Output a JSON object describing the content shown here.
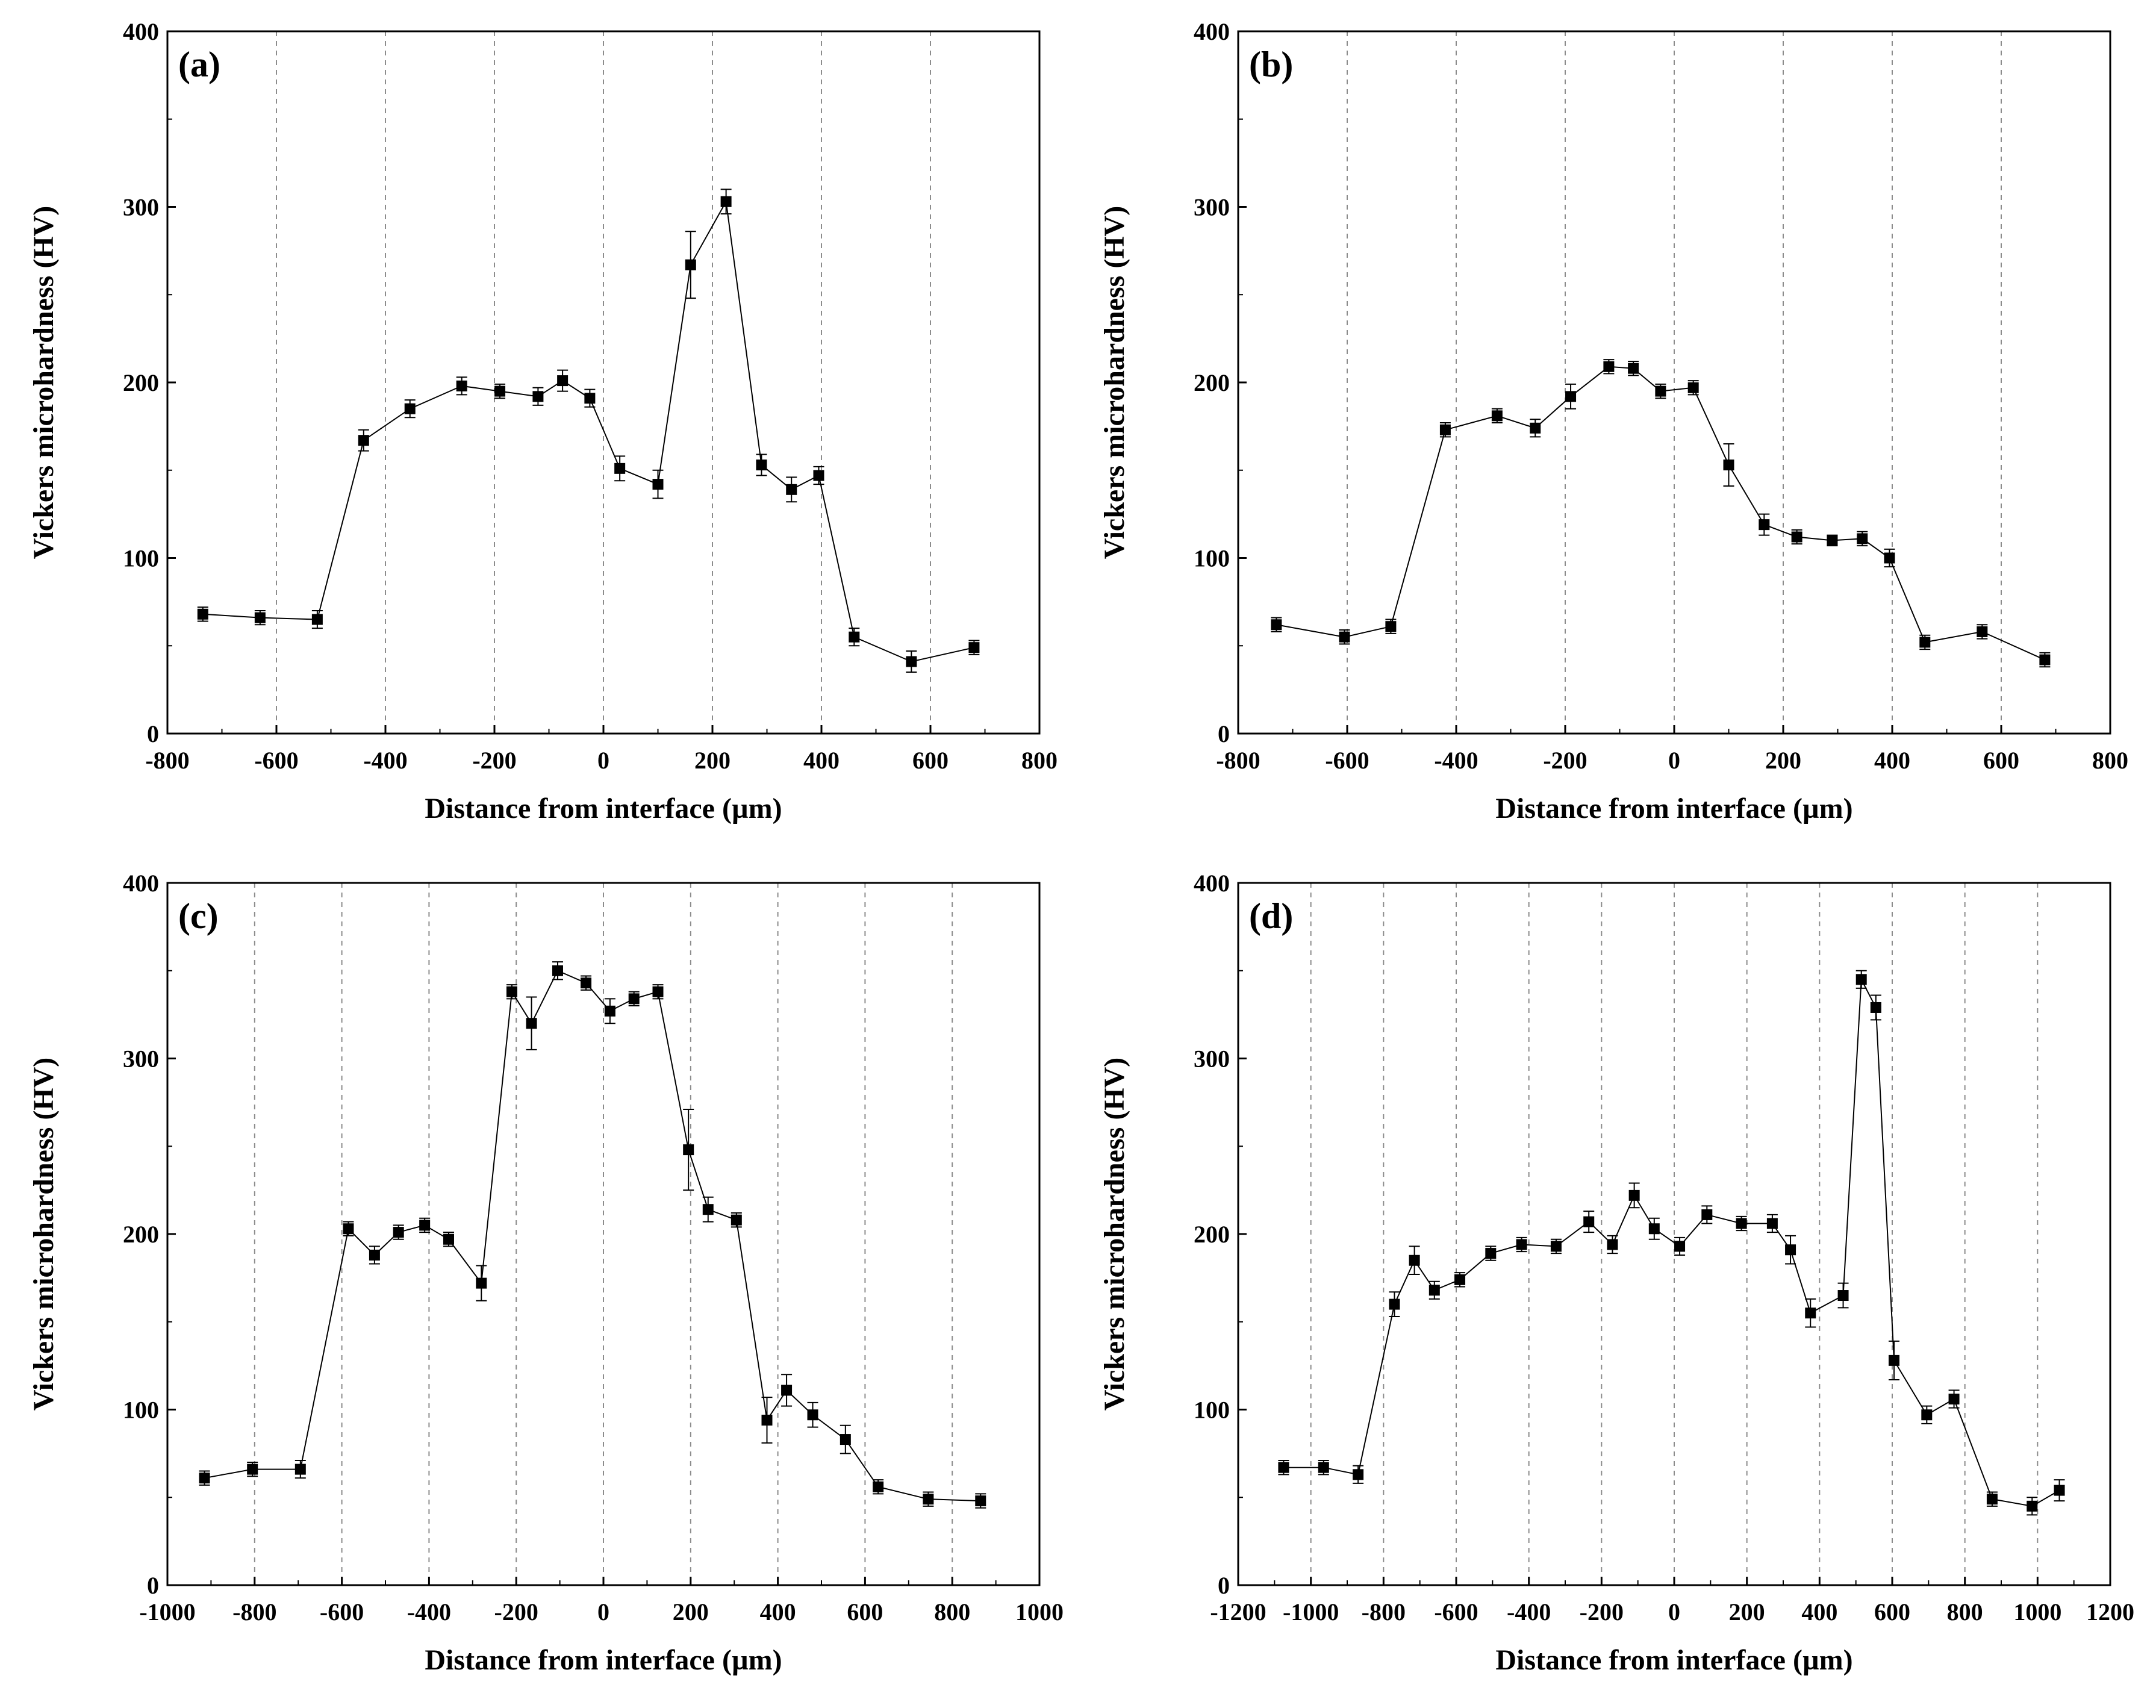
{
  "chart_data": [
    {
      "type": "line",
      "panel_label": "(a)",
      "xlabel": "Distance from interface (µm)",
      "ylabel": "Vickers microhardness (HV)",
      "xlim": [
        -800,
        800
      ],
      "ylim": [
        0,
        400
      ],
      "xticks": [
        -800,
        -600,
        -400,
        -200,
        0,
        200,
        400,
        600,
        800
      ],
      "yticks": [
        0,
        100,
        200,
        300,
        400
      ],
      "gridlines_x": [
        -600,
        -400,
        -200,
        0,
        200,
        400,
        600
      ],
      "series": [
        {
          "name": "(a)",
          "x": [
            -735,
            -630,
            -525,
            -440,
            -355,
            -260,
            -190,
            -120,
            -75,
            -25,
            30,
            100,
            160,
            225,
            290,
            345,
            395,
            460,
            565,
            680
          ],
          "y": [
            68,
            66,
            65,
            167,
            185,
            198,
            195,
            192,
            201,
            191,
            151,
            142,
            267,
            303,
            153,
            139,
            147,
            55,
            41,
            49
          ],
          "err": [
            4,
            4,
            5,
            6,
            5,
            5,
            4,
            5,
            6,
            5,
            7,
            8,
            19,
            7,
            6,
            7,
            5,
            5,
            6,
            4
          ]
        }
      ]
    },
    {
      "type": "line",
      "panel_label": "(b)",
      "xlabel": "Distance from interface (µm)",
      "ylabel": "Vickers microhardness (HV)",
      "xlim": [
        -800,
        800
      ],
      "ylim": [
        0,
        400
      ],
      "xticks": [
        -800,
        -600,
        -400,
        -200,
        0,
        200,
        400,
        600,
        800
      ],
      "yticks": [
        0,
        100,
        200,
        300,
        400
      ],
      "gridlines_x": [
        -600,
        -400,
        -200,
        0,
        200,
        400,
        600
      ],
      "series": [
        {
          "name": "(b)",
          "x": [
            -730,
            -605,
            -520,
            -420,
            -325,
            -255,
            -190,
            -120,
            -75,
            -25,
            35,
            100,
            165,
            225,
            290,
            345,
            395,
            460,
            565,
            680
          ],
          "y": [
            62,
            55,
            61,
            173,
            181,
            174,
            192,
            209,
            208,
            195,
            197,
            153,
            119,
            112,
            110,
            111,
            100,
            52,
            58,
            42
          ],
          "err": [
            4,
            4,
            4,
            4,
            4,
            5,
            7,
            4,
            4,
            4,
            4,
            12,
            6,
            4,
            3,
            4,
            5,
            4,
            4,
            4
          ]
        }
      ]
    },
    {
      "type": "line",
      "panel_label": "(c)",
      "xlabel": "Distance from interface (µm)",
      "ylabel": "Vickers microhardness (HV)",
      "xlim": [
        -1000,
        1000
      ],
      "ylim": [
        0,
        400
      ],
      "xticks": [
        -1000,
        -800,
        -600,
        -400,
        -200,
        0,
        200,
        400,
        600,
        800,
        1000
      ],
      "yticks": [
        0,
        100,
        200,
        300,
        400
      ],
      "gridlines_x": [
        -800,
        -600,
        -400,
        -200,
        0,
        200,
        400,
        600,
        800
      ],
      "series": [
        {
          "name": "(c)",
          "x": [
            -915,
            -805,
            -695,
            -585,
            -525,
            -470,
            -410,
            -355,
            -280,
            -210,
            -165,
            -105,
            -40,
            15,
            70,
            125,
            195,
            240,
            305,
            375,
            420,
            480,
            555,
            630,
            745,
            865
          ],
          "y": [
            61,
            66,
            66,
            203,
            188,
            201,
            205,
            197,
            172,
            338,
            320,
            350,
            343,
            327,
            334,
            338,
            248,
            214,
            208,
            94,
            111,
            97,
            83,
            56,
            49,
            48
          ],
          "err": [
            4,
            4,
            5,
            4,
            5,
            4,
            4,
            4,
            10,
            4,
            15,
            5,
            4,
            7,
            4,
            4,
            23,
            7,
            4,
            13,
            9,
            7,
            8,
            4,
            4,
            4
          ]
        }
      ]
    },
    {
      "type": "line",
      "panel_label": "(d)",
      "xlabel": "Distance from interface (µm)",
      "ylabel": "Vickers microhardness (HV)",
      "xlim": [
        -1200,
        1200
      ],
      "ylim": [
        0,
        400
      ],
      "xticks": [
        -1200,
        -1000,
        -800,
        -600,
        -400,
        -200,
        0,
        200,
        400,
        600,
        800,
        1000,
        1200
      ],
      "yticks": [
        0,
        100,
        200,
        300,
        400
      ],
      "gridlines_x": [
        -1000,
        -800,
        -600,
        -400,
        -200,
        0,
        200,
        400,
        600,
        800,
        1000
      ],
      "series": [
        {
          "name": "(d)",
          "x": [
            -1075,
            -965,
            -870,
            -770,
            -715,
            -660,
            -590,
            -505,
            -420,
            -325,
            -235,
            -170,
            -110,
            -55,
            15,
            90,
            185,
            270,
            320,
            375,
            465,
            515,
            555,
            605,
            695,
            770,
            875,
            985,
            1060
          ],
          "y": [
            67,
            67,
            63,
            160,
            185,
            168,
            174,
            189,
            194,
            193,
            207,
            194,
            222,
            203,
            193,
            211,
            206,
            206,
            191,
            155,
            165,
            345,
            329,
            128,
            97,
            106,
            49,
            45,
            54
          ],
          "err": [
            4,
            4,
            5,
            7,
            8,
            5,
            4,
            4,
            4,
            4,
            6,
            5,
            7,
            6,
            5,
            5,
            4,
            5,
            8,
            8,
            7,
            5,
            7,
            11,
            5,
            5,
            4,
            5,
            6
          ]
        }
      ]
    }
  ]
}
